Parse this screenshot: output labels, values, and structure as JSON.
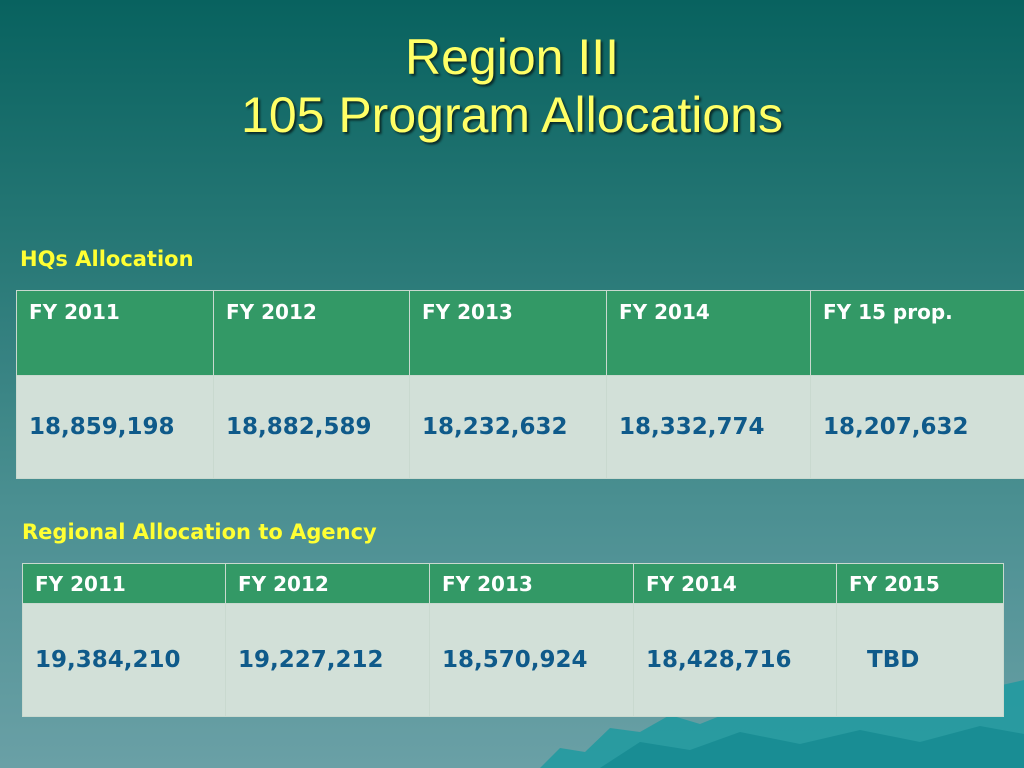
{
  "title": {
    "line1": "Region III",
    "line2": "105 Program Allocations"
  },
  "hq_section": {
    "label": "HQs Allocation",
    "headers": [
      "FY 2011",
      "FY 2012",
      "FY 2013",
      "FY 2014",
      "FY 15 prop."
    ],
    "values": [
      "18,859,198",
      "18,882,589",
      "18,232,632",
      "18,332,774",
      "18,207,632"
    ]
  },
  "regional_section": {
    "label": "Regional Allocation to Agency",
    "headers": [
      "FY 2011",
      "FY 2012",
      "FY 2013",
      "FY 2014",
      "FY 2015"
    ],
    "values": [
      "19,384,210",
      "19,227,212",
      "18,570,924",
      "18,428,716",
      "TBD"
    ]
  },
  "colors": {
    "title": "#ffff66",
    "section_label": "#ffff33",
    "header_bg": "#339966",
    "value_bg": "#d2e0d8",
    "value_text": "#0f5a8a"
  }
}
